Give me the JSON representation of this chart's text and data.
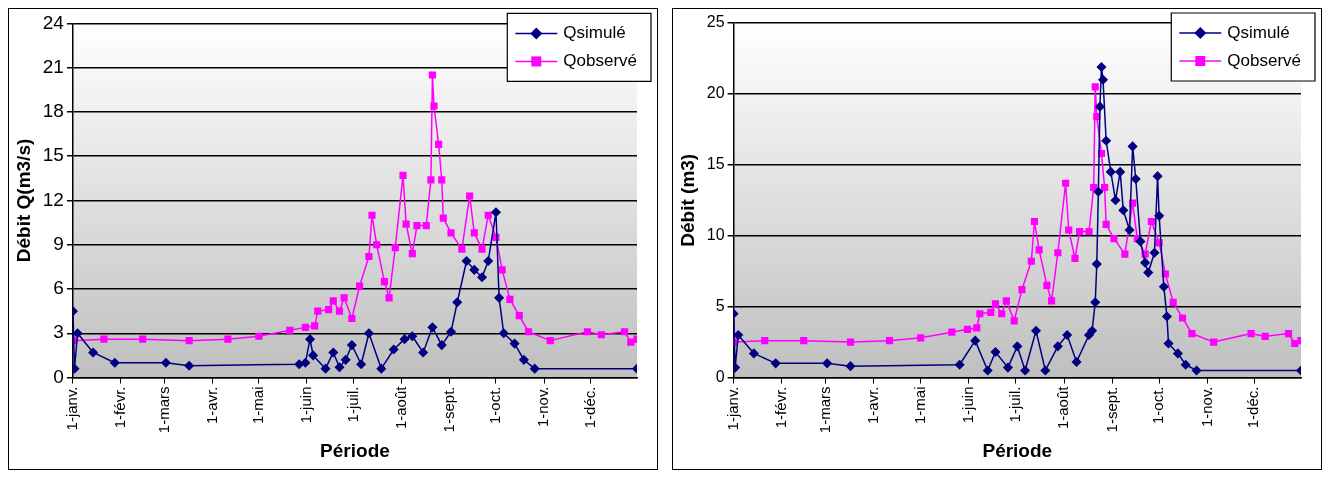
{
  "chart_data": [
    {
      "type": "line",
      "xlabel": "Période",
      "ylabel": "Débit Q(m3/s)",
      "xlim": [
        "--01-01",
        "--12-31"
      ],
      "ylim": [
        0,
        24
      ],
      "yticks": [
        0,
        3,
        6,
        9,
        12,
        15,
        18,
        21,
        24
      ],
      "xticks": [
        {
          "value": "--01-01",
          "label": "1-janv."
        },
        {
          "value": "--02-01",
          "label": "1-févr."
        },
        {
          "value": "--03-01",
          "label": "1-mars"
        },
        {
          "value": "--04-01",
          "label": "1-avr."
        },
        {
          "value": "--05-01",
          "label": "1-mai"
        },
        {
          "value": "--06-01",
          "label": "1-juin"
        },
        {
          "value": "--07-01",
          "label": "1-juil."
        },
        {
          "value": "--08-01",
          "label": "1-août"
        },
        {
          "value": "--09-01",
          "label": "1-sept."
        },
        {
          "value": "--10-01",
          "label": "1-oct."
        },
        {
          "value": "--11-01",
          "label": "1-nov."
        },
        {
          "value": "--12-01",
          "label": "1-déc."
        }
      ],
      "grid": "y",
      "legend": "top right",
      "series": [
        {
          "name": "Qsimulé",
          "color": "#000080",
          "marker": "diamond",
          "x": [
            "--01-01",
            "--01-02",
            "--01-04",
            "--01-14",
            "--01-28",
            "--03-02",
            "--03-17",
            "--05-27",
            "--05-31",
            "--06-03",
            "--06-05",
            "--06-13",
            "--06-18",
            "--06-22",
            "--06-26",
            "--06-30",
            "--07-06",
            "--07-11",
            "--07-19",
            "--07-27",
            "--08-03",
            "--08-08",
            "--08-15",
            "--08-21",
            "--08-27",
            "--09-02",
            "--09-06",
            "--09-12",
            "--09-17",
            "--09-22",
            "--09-26",
            "--10-01",
            "--10-03",
            "--10-06",
            "--10-13",
            "--10-19",
            "--10-26",
            "--12-31"
          ],
          "values": [
            4.5,
            0.6,
            3.0,
            1.7,
            1.0,
            1.0,
            0.8,
            0.9,
            1.0,
            2.6,
            1.5,
            0.6,
            1.7,
            0.7,
            1.2,
            2.2,
            0.9,
            3.0,
            0.6,
            1.9,
            2.6,
            2.8,
            1.7,
            3.4,
            2.2,
            3.1,
            5.1,
            7.9,
            7.3,
            6.8,
            7.9,
            11.2,
            5.4,
            3.0,
            2.3,
            1.2,
            0.6,
            0.6
          ]
        },
        {
          "name": "Qobservé",
          "color": "#ff00ff",
          "marker": "square",
          "x": [
            "--01-01",
            "--01-21",
            "--02-15",
            "--03-17",
            "--04-11",
            "--05-01",
            "--05-21",
            "--05-31",
            "--06-06",
            "--06-08",
            "--06-15",
            "--06-18",
            "--06-22",
            "--06-25",
            "--06-30",
            "--07-05",
            "--07-11",
            "--07-13",
            "--07-16",
            "--07-21",
            "--07-24",
            "--07-28",
            "--08-02",
            "--08-04",
            "--08-08",
            "--08-11",
            "--08-17",
            "--08-20",
            "--08-21",
            "--08-22",
            "--08-25",
            "--08-27",
            "--08-28",
            "--09-02",
            "--09-09",
            "--09-14",
            "--09-17",
            "--09-22",
            "--09-26",
            "--10-01",
            "--10-05",
            "--10-10",
            "--10-16",
            "--10-22",
            "--11-05",
            "--11-29",
            "--12-08",
            "--12-23",
            "--12-27",
            "--12-31"
          ],
          "values": [
            2.5,
            2.6,
            2.6,
            2.5,
            2.6,
            2.8,
            3.2,
            3.4,
            3.5,
            4.5,
            4.6,
            5.2,
            4.5,
            5.4,
            4.0,
            6.2,
            8.2,
            11.0,
            9.0,
            6.5,
            5.4,
            8.8,
            13.7,
            10.4,
            8.4,
            10.3,
            10.3,
            13.4,
            20.5,
            18.4,
            15.8,
            13.4,
            10.8,
            9.8,
            8.7,
            12.3,
            9.8,
            8.7,
            11.0,
            9.5,
            7.3,
            5.3,
            4.2,
            3.1,
            2.5,
            3.1,
            2.9,
            3.1,
            2.4,
            2.6
          ]
        }
      ]
    },
    {
      "type": "line",
      "xlabel": "Période",
      "ylabel": "Débit (m3)",
      "xlim": [
        "--01-01",
        "--12-31"
      ],
      "ylim": [
        0,
        25
      ],
      "yticks": [
        0,
        5,
        10,
        15,
        20,
        25
      ],
      "xticks": [
        {
          "value": "--01-01",
          "label": "1-janv."
        },
        {
          "value": "--02-01",
          "label": "1-févr."
        },
        {
          "value": "--03-01",
          "label": "1-mars"
        },
        {
          "value": "--04-01",
          "label": "1-avr."
        },
        {
          "value": "--05-01",
          "label": "1-mai"
        },
        {
          "value": "--06-01",
          "label": "1-juin"
        },
        {
          "value": "--07-01",
          "label": "1-juil."
        },
        {
          "value": "--08-01",
          "label": "1-août"
        },
        {
          "value": "--09-01",
          "label": "1-sept."
        },
        {
          "value": "--10-01",
          "label": "1-oct."
        },
        {
          "value": "--11-01",
          "label": "1-nov."
        },
        {
          "value": "--12-01",
          "label": "1-déc."
        }
      ],
      "grid": "y",
      "legend": "top right",
      "series": [
        {
          "name": "Qsimulé",
          "color": "#000080",
          "marker": "diamond",
          "x": [
            "--01-01",
            "--01-02",
            "--01-04",
            "--01-14",
            "--01-28",
            "--03-02",
            "--03-17",
            "--05-26",
            "--06-05",
            "--06-13",
            "--06-18",
            "--06-26",
            "--07-02",
            "--07-07",
            "--07-14",
            "--07-20",
            "--07-28",
            "--08-03",
            "--08-09",
            "--08-17",
            "--08-19",
            "--08-21",
            "--08-22",
            "--08-23",
            "--08-24",
            "--08-25",
            "--08-26",
            "--08-28",
            "--08-31",
            "--09-03",
            "--09-06",
            "--09-08",
            "--09-12",
            "--09-14",
            "--09-16",
            "--09-19",
            "--09-22",
            "--09-24",
            "--09-28",
            "--09-30",
            "--10-01",
            "--10-04",
            "--10-06",
            "--10-07",
            "--10-13",
            "--10-18",
            "--10-25",
            "--12-31"
          ],
          "values": [
            4.5,
            0.7,
            3.0,
            1.7,
            1.0,
            1.0,
            0.8,
            0.9,
            2.6,
            0.5,
            1.8,
            0.7,
            2.2,
            0.5,
            3.3,
            0.5,
            2.2,
            3.0,
            1.1,
            3.0,
            3.3,
            5.3,
            8.0,
            13.1,
            19.1,
            21.9,
            21.0,
            16.7,
            14.5,
            12.5,
            14.5,
            11.8,
            10.4,
            16.3,
            14.0,
            9.6,
            8.1,
            7.4,
            8.8,
            14.2,
            11.4,
            6.4,
            4.3,
            2.4,
            1.7,
            0.9,
            0.5,
            0.5
          ]
        },
        {
          "name": "Qobservé",
          "color": "#ff00ff",
          "marker": "square",
          "x": [
            "--01-01",
            "--01-21",
            "--02-15",
            "--03-17",
            "--04-11",
            "--05-01",
            "--05-21",
            "--05-31",
            "--06-06",
            "--06-08",
            "--06-15",
            "--06-18",
            "--06-22",
            "--06-25",
            "--06-30",
            "--07-05",
            "--07-11",
            "--07-13",
            "--07-16",
            "--07-21",
            "--07-24",
            "--07-28",
            "--08-02",
            "--08-04",
            "--08-08",
            "--08-11",
            "--08-17",
            "--08-20",
            "--08-21",
            "--08-22",
            "--08-25",
            "--08-27",
            "--08-28",
            "--09-02",
            "--09-09",
            "--09-14",
            "--09-17",
            "--09-22",
            "--09-26",
            "--10-01",
            "--10-05",
            "--10-10",
            "--10-16",
            "--10-22",
            "--11-05",
            "--11-29",
            "--12-08",
            "--12-23",
            "--12-27",
            "--12-31"
          ],
          "values": [
            2.5,
            2.6,
            2.6,
            2.5,
            2.6,
            2.8,
            3.2,
            3.4,
            3.5,
            4.5,
            4.6,
            5.2,
            4.5,
            5.4,
            4.0,
            6.2,
            8.2,
            11.0,
            9.0,
            6.5,
            5.4,
            8.8,
            13.7,
            10.4,
            8.4,
            10.3,
            10.3,
            13.4,
            20.5,
            18.4,
            15.8,
            13.4,
            10.8,
            9.8,
            8.7,
            12.3,
            9.8,
            8.7,
            11.0,
            9.5,
            7.3,
            5.3,
            4.2,
            3.1,
            2.5,
            3.1,
            2.9,
            3.1,
            2.4,
            2.6
          ]
        }
      ]
    }
  ]
}
